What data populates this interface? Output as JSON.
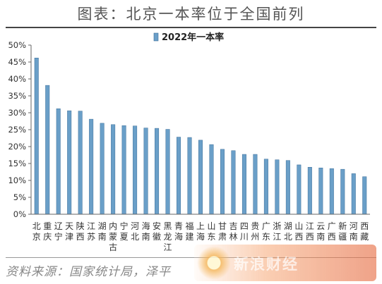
{
  "page": {
    "title": "图表：北京一本率位于全国前列",
    "source": "资料来源：国家统计局，泽平"
  },
  "colors": {
    "bar": "#6a9fc8",
    "bar_edge": "#3e6f99",
    "axis": "#666666",
    "text": "#333333"
  },
  "chart_data": {
    "type": "bar",
    "title": "",
    "xlabel": "",
    "ylabel": "",
    "ylim": [
      0,
      0.5
    ],
    "yticks": [
      "0%",
      "5%",
      "10%",
      "15%",
      "20%",
      "25%",
      "30%",
      "35%",
      "40%",
      "45%",
      "50%"
    ],
    "grid": false,
    "legend_position": "top-center",
    "categories": [
      "北京",
      "重庆",
      "辽宁",
      "天津",
      "陕西",
      "江苏",
      "湖南",
      "内蒙古",
      "宁夏",
      "河北",
      "海南",
      "安徽",
      "黑龙江",
      "青海",
      "福建",
      "上海",
      "山东",
      "甘肃",
      "吉林",
      "四川",
      "贵州",
      "广东",
      "浙江",
      "湖北",
      "山西",
      "江西",
      "云南",
      "广西",
      "新疆",
      "河南",
      "西藏"
    ],
    "series": [
      {
        "name": "2022年一本率",
        "values": [
          0.462,
          0.381,
          0.312,
          0.306,
          0.305,
          0.281,
          0.269,
          0.265,
          0.262,
          0.261,
          0.255,
          0.254,
          0.251,
          0.228,
          0.227,
          0.219,
          0.206,
          0.192,
          0.188,
          0.177,
          0.177,
          0.163,
          0.161,
          0.159,
          0.146,
          0.139,
          0.137,
          0.135,
          0.133,
          0.12,
          0.111
        ]
      }
    ]
  }
}
